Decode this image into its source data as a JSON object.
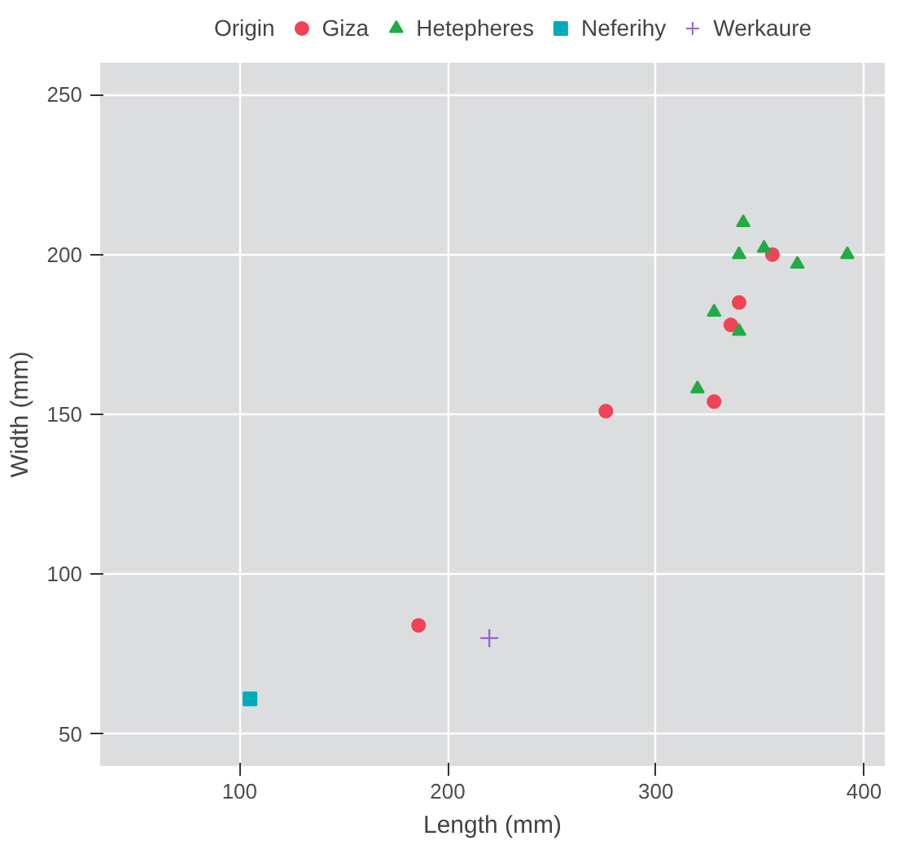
{
  "chart_data": {
    "type": "scatter",
    "xlabel": "Length (mm)",
    "ylabel": "Width (mm)",
    "legend_title": "Origin",
    "legend": "top",
    "grid": true,
    "xlim": [
      33,
      410
    ],
    "ylim": [
      40,
      260
    ],
    "xticks": [
      100,
      200,
      300,
      400
    ],
    "yticks": [
      50,
      100,
      150,
      200,
      250
    ],
    "series": [
      {
        "name": "Giza",
        "color": "#ee4455",
        "marker": "circle",
        "x": [
          356,
          340,
          336,
          328,
          276,
          186
        ],
        "values": [
          200,
          185,
          178,
          154,
          151,
          84
        ]
      },
      {
        "name": "Hetepheres",
        "color": "#22aa44",
        "marker": "triangle",
        "x": [
          342,
          352,
          340,
          368,
          392,
          328,
          340,
          320
        ],
        "values": [
          210,
          202,
          200,
          197,
          200,
          182,
          176,
          158
        ]
      },
      {
        "name": "Neferihy",
        "color": "#00aabb",
        "marker": "square",
        "x": [
          105
        ],
        "values": [
          61
        ]
      },
      {
        "name": "Werkaure",
        "color": "#9966cc",
        "marker": "cross",
        "x": [
          220
        ],
        "values": [
          80
        ]
      }
    ]
  }
}
